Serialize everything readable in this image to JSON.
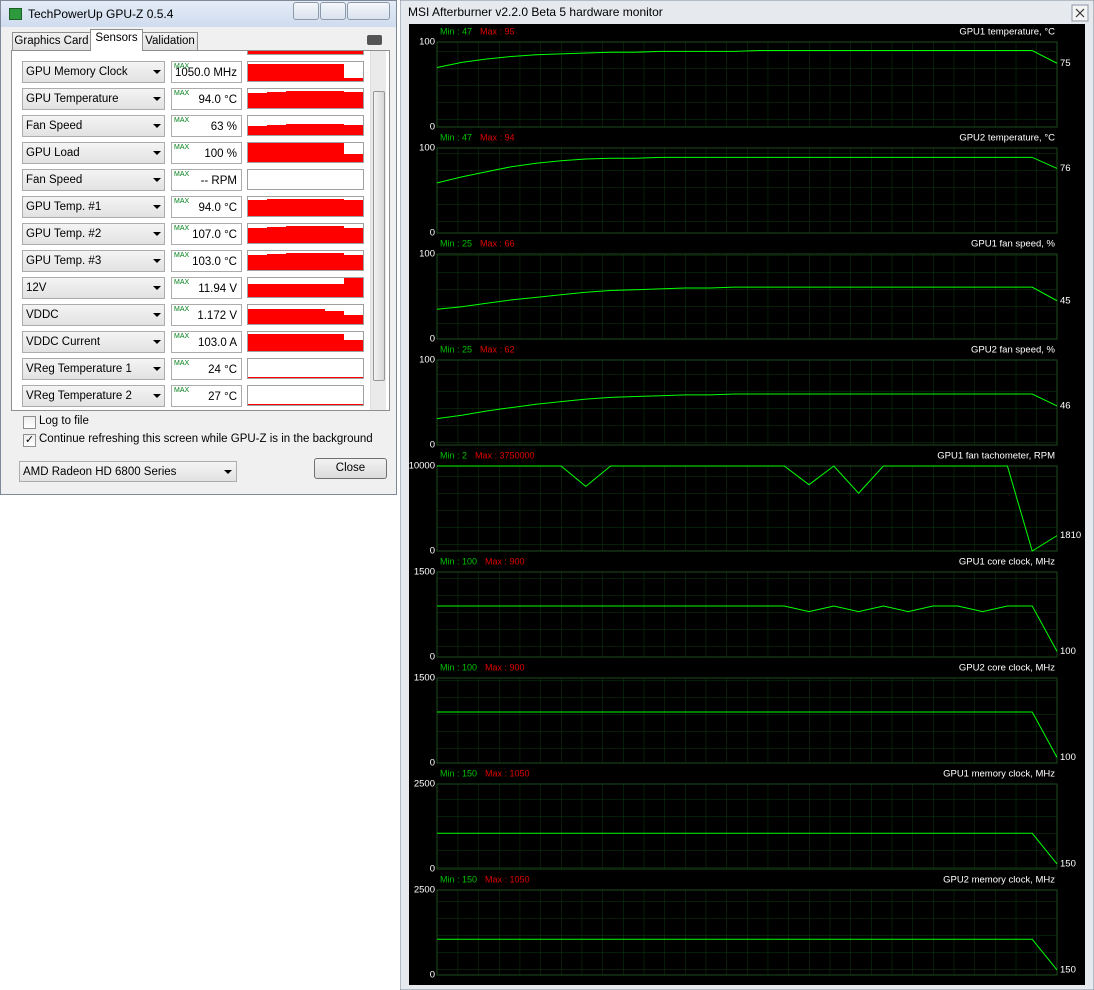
{
  "gpuz": {
    "title": "TechPowerUp GPU-Z 0.5.4",
    "tabs": [
      "Graphics Card",
      "Sensors",
      "Validation"
    ],
    "max_label": "MAX",
    "sensors": [
      {
        "name": "GPU Memory Clock",
        "value": "1050.0 MHz",
        "history": [
          90,
          90,
          90,
          90,
          90,
          15
        ]
      },
      {
        "name": "GPU Temperature",
        "value": "94.0 °C",
        "history": [
          80,
          85,
          88,
          88,
          88,
          85
        ]
      },
      {
        "name": "Fan Speed",
        "value": "63 %",
        "history": [
          50,
          55,
          58,
          58,
          58,
          55
        ]
      },
      {
        "name": "GPU Load",
        "value": "100 %",
        "history": [
          100,
          100,
          100,
          100,
          100,
          40
        ]
      },
      {
        "name": "Fan Speed",
        "value": "-- RPM",
        "history": []
      },
      {
        "name": "GPU Temp. #1",
        "value": "94.0 °C",
        "history": [
          85,
          88,
          90,
          90,
          90,
          85
        ]
      },
      {
        "name": "GPU Temp. #2",
        "value": "107.0 °C",
        "history": [
          80,
          85,
          88,
          88,
          88,
          80
        ]
      },
      {
        "name": "GPU Temp. #3",
        "value": "103.0 °C",
        "history": [
          80,
          85,
          88,
          88,
          88,
          78
        ]
      },
      {
        "name": "12V",
        "value": "11.94 V",
        "history": [
          70,
          70,
          70,
          70,
          70,
          100
        ]
      },
      {
        "name": "VDDC",
        "value": "1.172 V",
        "history": [
          80,
          80,
          80,
          80,
          70,
          50
        ]
      },
      {
        "name": "VDDC Current",
        "value": "103.0 A",
        "history": [
          90,
          90,
          90,
          90,
          90,
          60
        ]
      },
      {
        "name": "VReg Temperature 1",
        "value": "24 °C",
        "history": [
          5,
          5,
          5,
          5,
          5,
          5
        ]
      },
      {
        "name": "VReg Temperature 2",
        "value": "27 °C",
        "history": [
          5,
          5,
          5,
          5,
          5,
          5
        ]
      }
    ],
    "log_to_file": "Log to file",
    "continue_refresh": "Continue refreshing this screen while GPU-Z is in the background",
    "gpu_select": "AMD Radeon HD 6800 Series",
    "close": "Close"
  },
  "afterburner": {
    "title": "MSI Afterburner v2.2.0 Beta 5 hardware monitor",
    "panels": [
      {
        "title": "GPU1 temperature, °C",
        "min_label": "Min : 47",
        "max_label": "Max : 95",
        "ymin": 0,
        "ymax": 100,
        "current": 75,
        "values": [
          70,
          76,
          80,
          83,
          85,
          86,
          87,
          88,
          88,
          89,
          89,
          89,
          89,
          90,
          90,
          90,
          90,
          90,
          90,
          90,
          90,
          90,
          90,
          90,
          90,
          75
        ]
      },
      {
        "title": "GPU2 temperature, °C",
        "min_label": "Min : 47",
        "max_label": "Max : 94",
        "ymin": 0,
        "ymax": 100,
        "current": 76,
        "values": [
          59,
          66,
          72,
          78,
          82,
          85,
          87,
          88,
          88,
          89,
          89,
          89,
          89,
          89,
          89,
          89,
          89,
          89,
          89,
          89,
          89,
          89,
          89,
          89,
          89,
          76
        ]
      },
      {
        "title": "GPU1 fan speed, %",
        "min_label": "Min : 25",
        "max_label": "Max : 66",
        "ymin": 0,
        "ymax": 100,
        "current": 45,
        "values": [
          35,
          38,
          42,
          46,
          49,
          52,
          55,
          57,
          58,
          59,
          60,
          60,
          61,
          61,
          61,
          61,
          61,
          61,
          61,
          61,
          61,
          61,
          61,
          61,
          61,
          45
        ]
      },
      {
        "title": "GPU2 fan speed, %",
        "min_label": "Min : 25",
        "max_label": "Max : 62",
        "ymin": 0,
        "ymax": 100,
        "current": 46,
        "values": [
          31,
          35,
          40,
          44,
          48,
          51,
          54,
          56,
          57,
          58,
          59,
          59,
          60,
          60,
          60,
          60,
          60,
          60,
          60,
          60,
          60,
          60,
          60,
          60,
          60,
          46
        ]
      },
      {
        "title": "GPU1 fan tachometer, RPM",
        "min_label": "Min : 2",
        "max_label": "Max : 3750000",
        "ymin": 0,
        "ymax": 10000,
        "current": 1810,
        "values": [
          10000,
          10000,
          10000,
          10000,
          10000,
          10000,
          7600,
          10000,
          10000,
          10000,
          10000,
          10000,
          10000,
          10000,
          10000,
          7800,
          10000,
          6800,
          10000,
          10000,
          10000,
          10000,
          10000,
          10000,
          0,
          1810
        ]
      },
      {
        "title": "GPU1 core clock, MHz",
        "min_label": "Min : 100",
        "max_label": "Max : 900",
        "ymin": 0,
        "ymax": 1500,
        "current": 100,
        "values": [
          900,
          900,
          900,
          900,
          900,
          900,
          900,
          900,
          900,
          900,
          900,
          900,
          900,
          900,
          900,
          800,
          900,
          800,
          900,
          800,
          900,
          900,
          800,
          900,
          900,
          100
        ]
      },
      {
        "title": "GPU2 core clock, MHz",
        "min_label": "Min : 100",
        "max_label": "Max : 900",
        "ymin": 0,
        "ymax": 1500,
        "current": 100,
        "values": [
          900,
          900,
          900,
          900,
          900,
          900,
          900,
          900,
          900,
          900,
          900,
          900,
          900,
          900,
          900,
          900,
          900,
          900,
          900,
          900,
          900,
          900,
          900,
          900,
          900,
          100
        ]
      },
      {
        "title": "GPU1 memory clock, MHz",
        "min_label": "Min : 150",
        "max_label": "Max : 1050",
        "ymin": 0,
        "ymax": 2500,
        "current": 150,
        "values": [
          1050,
          1050,
          1050,
          1050,
          1050,
          1050,
          1050,
          1050,
          1050,
          1050,
          1050,
          1050,
          1050,
          1050,
          1050,
          1050,
          1050,
          1050,
          1050,
          1050,
          1050,
          1050,
          1050,
          1050,
          1050,
          150
        ]
      },
      {
        "title": "GPU2 memory clock, MHz",
        "min_label": "Min : 150",
        "max_label": "Max : 1050",
        "ymin": 0,
        "ymax": 2500,
        "current": 150,
        "values": [
          1050,
          1050,
          1050,
          1050,
          1050,
          1050,
          1050,
          1050,
          1050,
          1050,
          1050,
          1050,
          1050,
          1050,
          1050,
          1050,
          1050,
          1050,
          1050,
          1050,
          1050,
          1050,
          1050,
          1050,
          1050,
          150
        ]
      }
    ]
  }
}
